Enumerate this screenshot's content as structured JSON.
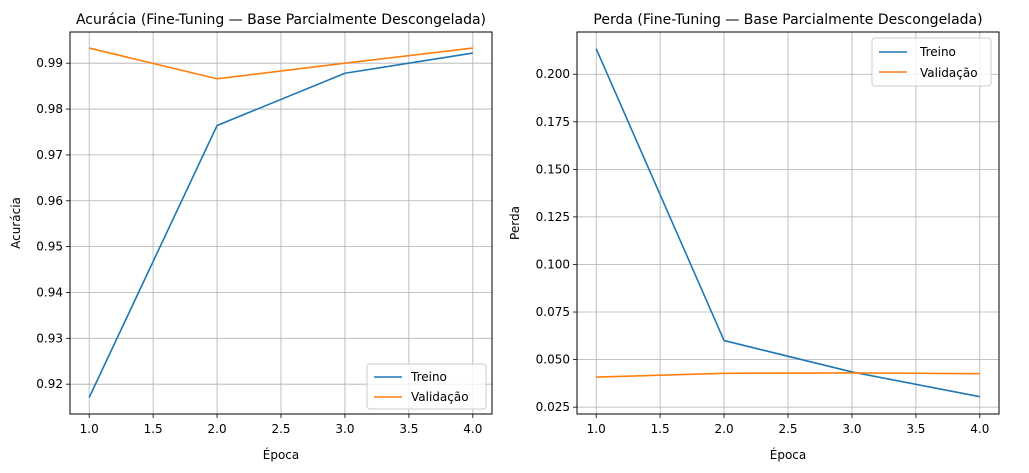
{
  "colors": {
    "treino": "#1f77b4",
    "validacao": "#ff7f0e",
    "grid": "#b0b0b0",
    "axis": "#000000"
  },
  "chart_data": [
    {
      "type": "line",
      "title": "Acurácia (Fine-Tuning — Base Parcialmente Descongelada)",
      "xlabel": "Época",
      "ylabel": "Acurácia",
      "xlim": [
        0.85,
        4.15
      ],
      "ylim": [
        0.9135,
        0.9968
      ],
      "grid": true,
      "legend_position": "lower-right",
      "x": [
        1.0,
        2.0,
        3.0,
        4.0
      ],
      "x_ticks": [
        "1.0",
        "1.5",
        "2.0",
        "2.5",
        "3.0",
        "3.5",
        "4.0"
      ],
      "y_ticks": [
        "0.92",
        "0.93",
        "0.94",
        "0.95",
        "0.96",
        "0.97",
        "0.98",
        "0.99"
      ],
      "series": [
        {
          "name": "Treino",
          "values": [
            0.9171,
            0.9764,
            0.9878,
            0.9922
          ]
        },
        {
          "name": "Validação",
          "values": [
            0.9933,
            0.9866,
            0.99,
            0.9933
          ]
        }
      ]
    },
    {
      "type": "line",
      "title": "Perda (Fine-Tuning — Base Parcialmente Descongelada)",
      "xlabel": "Época",
      "ylabel": "Perda",
      "xlim": [
        0.85,
        4.15
      ],
      "ylim": [
        0.0214,
        0.2222
      ],
      "grid": true,
      "legend_position": "upper-right",
      "x": [
        1.0,
        2.0,
        3.0,
        4.0
      ],
      "x_ticks": [
        "1.0",
        "1.5",
        "2.0",
        "2.5",
        "3.0",
        "3.5",
        "4.0"
      ],
      "y_ticks": [
        "0.025",
        "0.050",
        "0.075",
        "0.100",
        "0.125",
        "0.150",
        "0.175",
        "0.200"
      ],
      "series": [
        {
          "name": "Treino",
          "values": [
            0.2134,
            0.06,
            0.0435,
            0.0305
          ]
        },
        {
          "name": "Validação",
          "values": [
            0.0408,
            0.0428,
            0.043,
            0.0426
          ]
        }
      ]
    }
  ]
}
